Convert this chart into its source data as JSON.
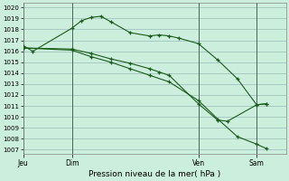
{
  "xlabel": "Pression niveau de la mer( hPa )",
  "bg_color": "#cceedd",
  "grid_color": "#99bbbb",
  "line_color": "#1a5c1a",
  "ylim": [
    1007,
    1020
  ],
  "yticks": [
    1007,
    1008,
    1009,
    1010,
    1011,
    1012,
    1013,
    1014,
    1015,
    1016,
    1017,
    1018,
    1019,
    1020
  ],
  "day_labels": [
    "Jeu",
    "Dim",
    "Ven",
    "Sam"
  ],
  "day_positions": [
    0,
    5,
    18,
    24
  ],
  "xlim": [
    0,
    27
  ],
  "series": [
    {
      "x": [
        0,
        1,
        5,
        6,
        7,
        8,
        9,
        11,
        13,
        14,
        15,
        16,
        18,
        20,
        22,
        24,
        25
      ],
      "y": [
        1016.5,
        1016.0,
        1018.1,
        1018.8,
        1019.1,
        1019.2,
        1018.7,
        1017.7,
        1017.4,
        1017.5,
        1017.4,
        1017.2,
        1016.7,
        1015.2,
        1013.5,
        1011.1,
        1011.2
      ]
    },
    {
      "x": [
        0,
        5,
        7,
        9,
        11,
        13,
        14,
        15,
        18,
        20,
        21,
        24,
        25
      ],
      "y": [
        1016.3,
        1016.2,
        1015.8,
        1015.3,
        1014.9,
        1014.4,
        1014.1,
        1013.8,
        1011.2,
        1009.7,
        1009.6,
        1011.1,
        1011.2
      ]
    },
    {
      "x": [
        0,
        5,
        7,
        9,
        11,
        13,
        15,
        18,
        20,
        22,
        24,
        25
      ],
      "y": [
        1016.3,
        1016.1,
        1015.5,
        1015.0,
        1014.4,
        1013.8,
        1013.2,
        1011.5,
        1009.8,
        1008.2,
        1007.5,
        1007.1
      ]
    }
  ]
}
